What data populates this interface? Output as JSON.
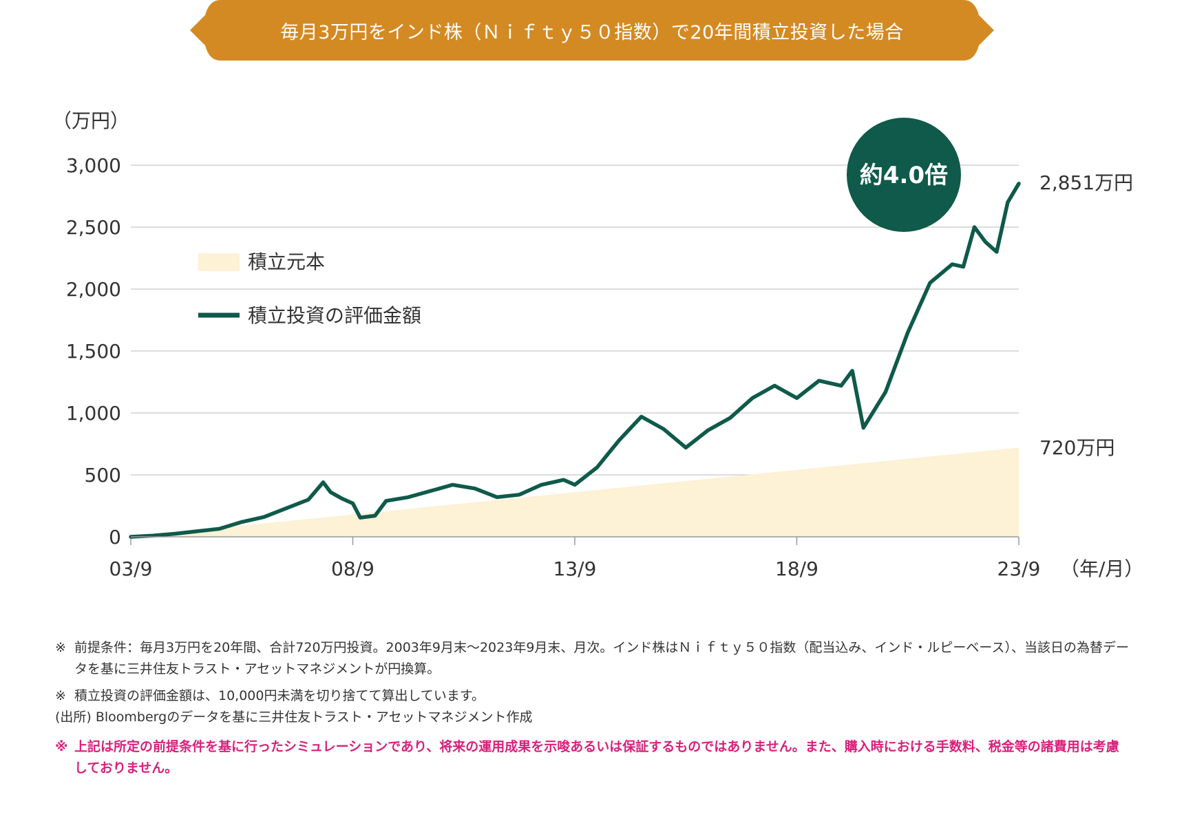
{
  "banner": {
    "title": "毎月3万円をインド株（Ｎｉｆｔｙ５０指数）で20年間積立投資した場合"
  },
  "colors": {
    "banner": "#d48a22",
    "valuation_line": "#0f5a4a",
    "principal_area": "#fdf1d6",
    "badge": "#0f5a4a",
    "disclaimer": "#d9207a",
    "gridline": "#c8c8c8"
  },
  "chart_data": {
    "type": "area+line",
    "y_unit_label": "（万円）",
    "x_unit_label": "（年/月）",
    "ylim": [
      0,
      3000
    ],
    "yticks": [
      0,
      500,
      1000,
      1500,
      2000,
      2500,
      3000
    ],
    "ytick_labels": [
      "0",
      "500",
      "1,000",
      "1,500",
      "2,000",
      "2,500",
      "3,000"
    ],
    "xlim": [
      "2003-09",
      "2023-09"
    ],
    "xticks": [
      "2003-09",
      "2008-09",
      "2013-09",
      "2018-09",
      "2023-09"
    ],
    "xtick_labels": [
      "03/9",
      "08/9",
      "13/9",
      "18/9",
      "23/9"
    ],
    "grid": true,
    "legend_position": "top-left",
    "series": [
      {
        "name": "積立元本",
        "type": "area",
        "points": [
          [
            "2003-09",
            0
          ],
          [
            "2023-09",
            720
          ]
        ]
      },
      {
        "name": "積立投資の評価金額",
        "type": "line",
        "points": [
          [
            "2003-09",
            0
          ],
          [
            "2004-03",
            10
          ],
          [
            "2004-09",
            25
          ],
          [
            "2005-03",
            45
          ],
          [
            "2005-09",
            65
          ],
          [
            "2006-03",
            120
          ],
          [
            "2006-09",
            160
          ],
          [
            "2007-03",
            230
          ],
          [
            "2007-09",
            300
          ],
          [
            "2008-01",
            440
          ],
          [
            "2008-03",
            360
          ],
          [
            "2008-06",
            310
          ],
          [
            "2008-09",
            270
          ],
          [
            "2008-11",
            155
          ],
          [
            "2009-03",
            170
          ],
          [
            "2009-06",
            290
          ],
          [
            "2009-12",
            320
          ],
          [
            "2010-06",
            370
          ],
          [
            "2010-12",
            420
          ],
          [
            "2011-06",
            390
          ],
          [
            "2011-12",
            320
          ],
          [
            "2012-06",
            340
          ],
          [
            "2012-12",
            420
          ],
          [
            "2013-06",
            460
          ],
          [
            "2013-09",
            420
          ],
          [
            "2014-03",
            560
          ],
          [
            "2014-09",
            780
          ],
          [
            "2015-03",
            970
          ],
          [
            "2015-09",
            870
          ],
          [
            "2016-03",
            720
          ],
          [
            "2016-09",
            860
          ],
          [
            "2017-03",
            960
          ],
          [
            "2017-09",
            1120
          ],
          [
            "2018-03",
            1220
          ],
          [
            "2018-09",
            1120
          ],
          [
            "2019-03",
            1260
          ],
          [
            "2019-09",
            1220
          ],
          [
            "2019-12",
            1340
          ],
          [
            "2020-03",
            880
          ],
          [
            "2020-09",
            1170
          ],
          [
            "2021-03",
            1650
          ],
          [
            "2021-09",
            2050
          ],
          [
            "2022-03",
            2200
          ],
          [
            "2022-06",
            2180
          ],
          [
            "2022-09",
            2500
          ],
          [
            "2022-12",
            2380
          ],
          [
            "2023-03",
            2300
          ],
          [
            "2023-06",
            2700
          ],
          [
            "2023-09",
            2851
          ]
        ]
      }
    ],
    "annotations": [
      {
        "text": "2,851万円",
        "x": "2023-09",
        "y": 2851
      },
      {
        "text": "720万円",
        "x": "2023-09",
        "y": 720
      },
      {
        "text": "約4.0倍",
        "x": "2021-09",
        "y": 2860,
        "style": "badge"
      }
    ]
  },
  "notes": [
    {
      "mark": "※",
      "text": "前提条件：毎月3万円を20年間、合計720万円投資。2003年9月末～2023年9月末、月次。インド株はＮｉｆｔｙ５０指数（配当込み、インド・ルピーベース）、当該日の為替データを基に三井住友トラスト・アセットマネジメントが円換算。"
    },
    {
      "mark": "※",
      "text": "積立投資の評価金額は、10,000円未満を切り捨てて算出しています。"
    },
    {
      "mark": "",
      "text": "(出所) Bloombergのデータを基に三井住友トラスト・アセットマネジメント作成"
    },
    {
      "mark": "※",
      "text": "上記は所定の前提条件を基に行ったシミュレーションであり、将来の運用成果を示唆あるいは保証するものではありません。また、購入時における手数料、税金等の諸費用は考慮しておりません。"
    }
  ]
}
